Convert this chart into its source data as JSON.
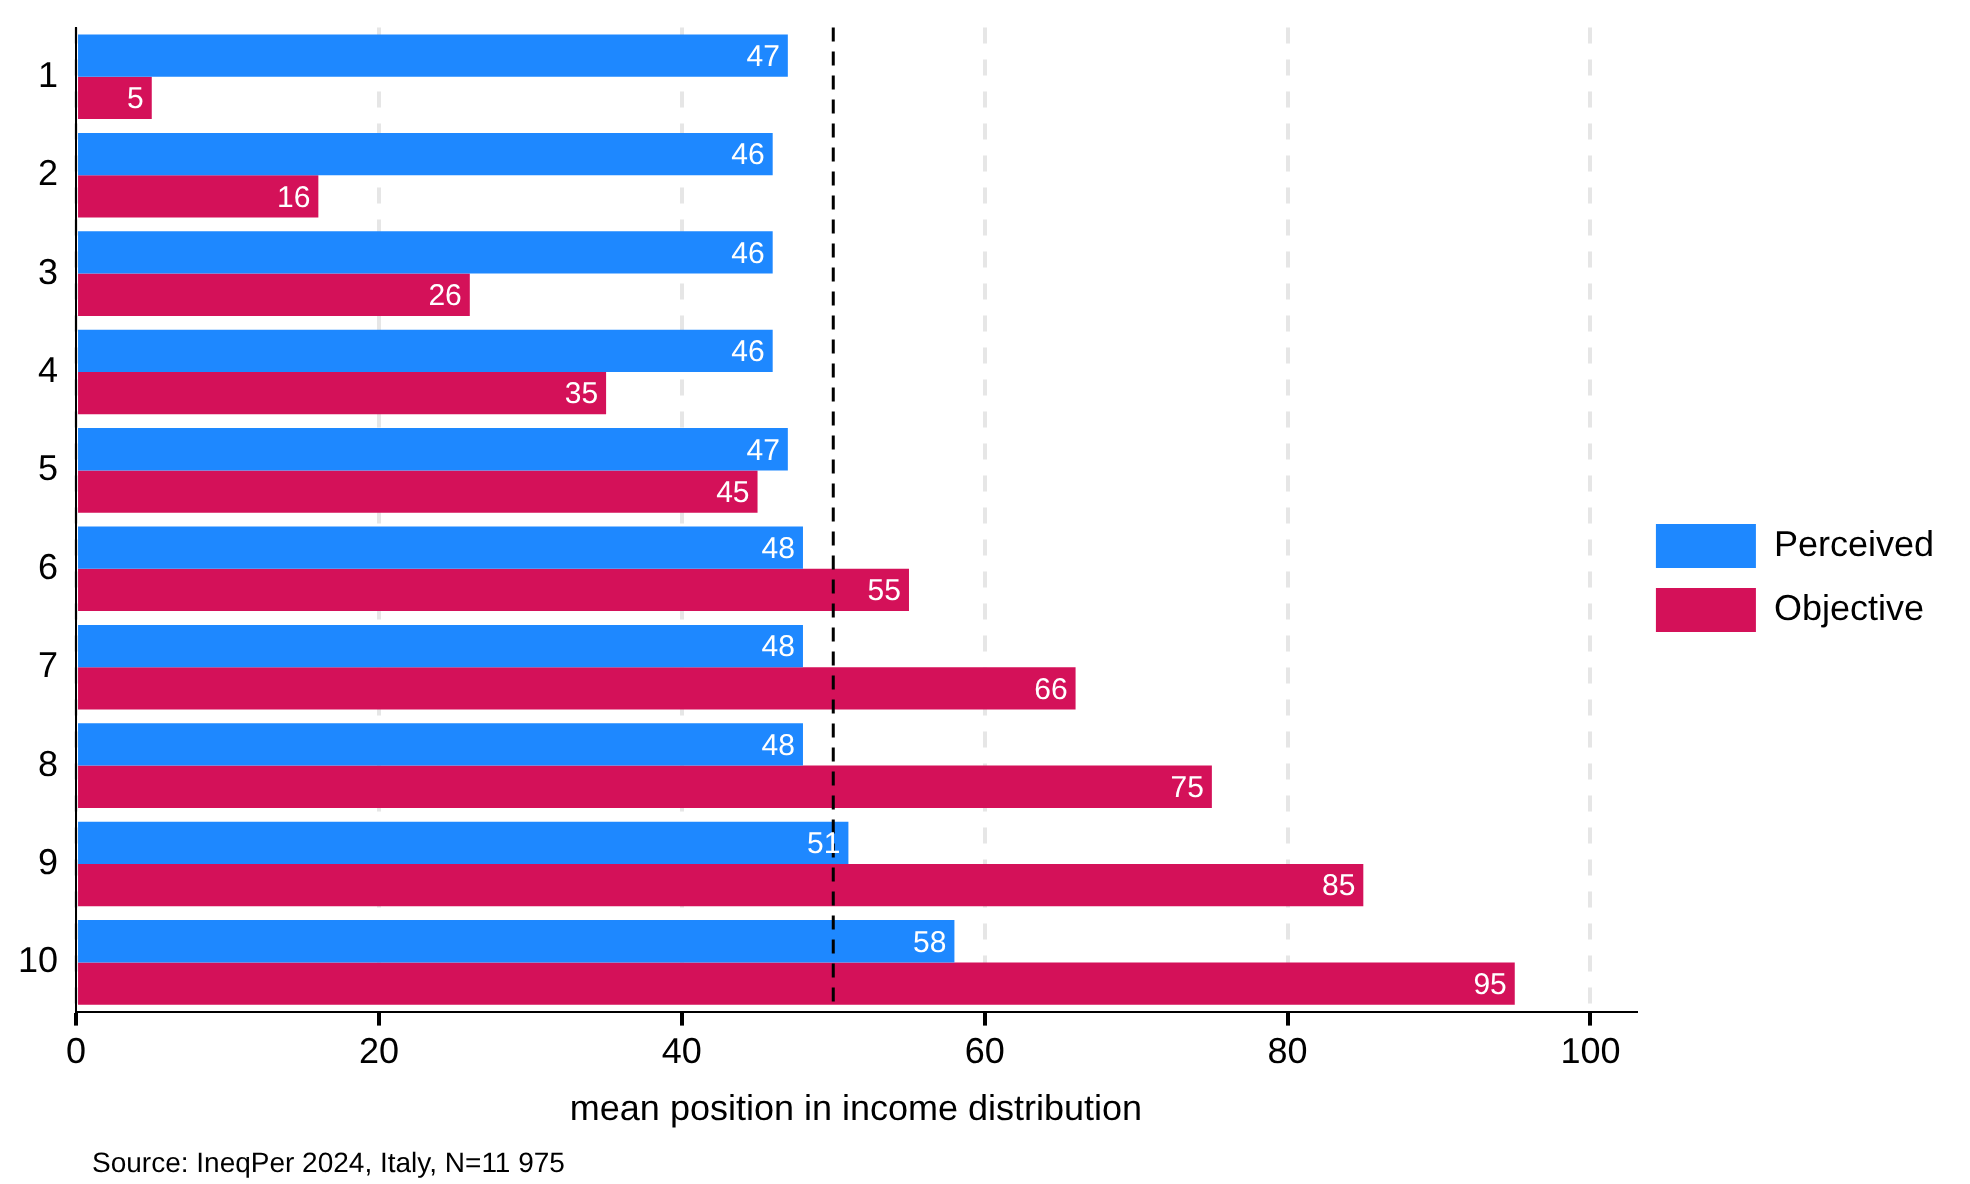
{
  "chart_data": {
    "type": "bar",
    "orientation": "horizontal",
    "xlabel": "mean position in income distribution",
    "categories": [
      "1",
      "2",
      "3",
      "4",
      "5",
      "6",
      "7",
      "8",
      "9",
      "10"
    ],
    "series": [
      {
        "name": "Perceived",
        "color": "#1e88ff",
        "values": [
          47,
          46,
          46,
          46,
          47,
          48,
          48,
          48,
          51,
          58
        ]
      },
      {
        "name": "Objective",
        "color": "#d41159",
        "values": [
          5,
          16,
          26,
          35,
          45,
          55,
          66,
          75,
          85,
          95
        ]
      }
    ],
    "xlim": [
      0,
      103
    ],
    "xticks": [
      0,
      20,
      40,
      60,
      80,
      100
    ],
    "grid": "x",
    "legend": "right",
    "data_labels": true,
    "ref_lines": [
      {
        "axis": "x",
        "value": 50,
        "color": "#000000",
        "line_style": "dashed"
      }
    ],
    "annotations": [
      "Source: IneqPer 2024, Italy, N=11 975"
    ]
  }
}
